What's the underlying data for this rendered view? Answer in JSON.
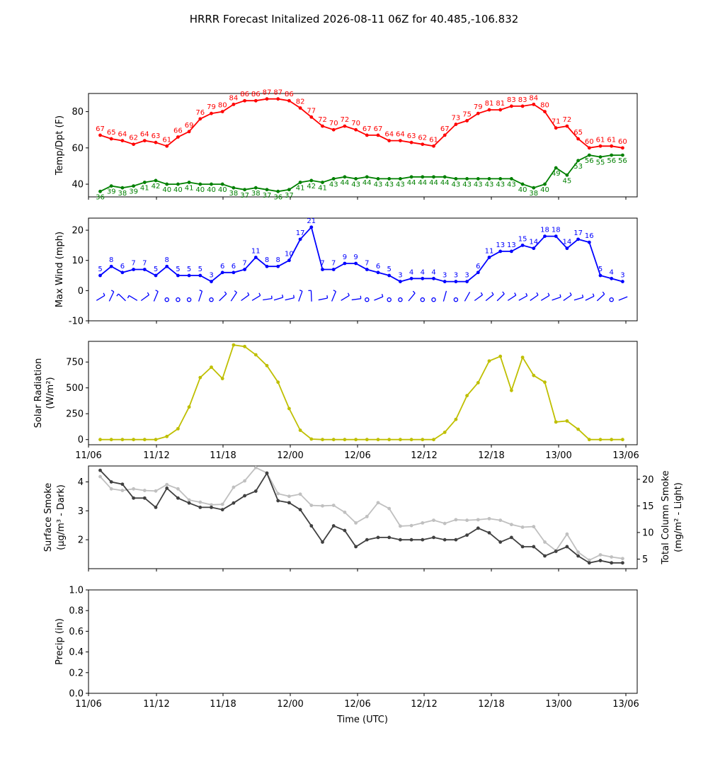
{
  "title": "HRRR Forecast Initalized 2026-08-11 06Z for 40.485,-106.832",
  "xlabel": "Time (UTC)",
  "colors": {
    "temp": "#ff0000",
    "dewpoint": "#008000",
    "wind": "#0000ff",
    "solar": "#bfbf00",
    "surface_smoke": "#404040",
    "column_smoke": "#c0c0c0"
  },
  "chart_data": [
    {
      "type": "line",
      "ylabel": "Temp/Dpt (F)",
      "ylim": [
        33,
        90
      ],
      "yticks": [
        40,
        60,
        80
      ],
      "series": [
        {
          "color": "red",
          "values": [
            67,
            65,
            64,
            62,
            64,
            63,
            61,
            66,
            69,
            76,
            79,
            80,
            84,
            86,
            86,
            87,
            87,
            86,
            82,
            77,
            72,
            70,
            72,
            70,
            67,
            67,
            64,
            64,
            63,
            62,
            61,
            67,
            73,
            75,
            79,
            81,
            81,
            83,
            83,
            84,
            80,
            71,
            72,
            65,
            60,
            61,
            61,
            60
          ]
        },
        {
          "color": "green",
          "values": [
            36,
            39,
            38,
            39,
            41,
            42,
            40,
            40,
            41,
            40,
            40,
            40,
            38,
            37,
            38,
            37,
            36,
            37,
            41,
            42,
            41,
            43,
            44,
            43,
            44,
            43,
            43,
            43,
            44,
            44,
            44,
            44,
            43,
            43,
            43,
            43,
            43,
            43,
            40,
            38,
            40,
            49,
            45,
            53,
            56,
            55,
            56,
            56
          ]
        }
      ]
    },
    {
      "type": "line",
      "ylabel": "Max Wind (mph)",
      "ylim": [
        -10,
        24
      ],
      "yticks": [
        -10,
        0,
        10,
        20
      ],
      "series": [
        {
          "color": "blue",
          "values": [
            5,
            8,
            6,
            7,
            7,
            5,
            8,
            5,
            5,
            5,
            3,
            6,
            6,
            7,
            11,
            8,
            8,
            10,
            17,
            21,
            7,
            7,
            9,
            9,
            7,
            6,
            5,
            3,
            4,
            4,
            4,
            3,
            3,
            3,
            6,
            11,
            13,
            13,
            15,
            14,
            18,
            18,
            14,
            17,
            16,
            5,
            4,
            3
          ]
        }
      ]
    },
    {
      "type": "line",
      "ylabel": "Solar Radiation (W/m²)",
      "ylim": [
        -50,
        950
      ],
      "yticks": [
        0,
        250,
        500,
        750
      ],
      "series": [
        {
          "color": "yellow",
          "values": [
            0,
            0,
            0,
            0,
            0,
            0,
            30,
            105,
            315,
            600,
            700,
            590,
            915,
            900,
            820,
            715,
            555,
            300,
            90,
            5,
            0,
            0,
            0,
            0,
            0,
            0,
            0,
            0,
            0,
            0,
            0,
            70,
            195,
            425,
            550,
            760,
            805,
            475,
            795,
            620,
            555,
            170,
            180,
            100,
            0,
            0,
            0,
            0
          ]
        }
      ]
    },
    {
      "type": "line",
      "ylabel": "Surface Smoke (μg/m³ - Dark)",
      "y2label": "Total Column Smoke (mg/m² - Light)",
      "ylim": [
        1.0,
        4.55
      ],
      "yticks": [
        2,
        3,
        4
      ],
      "y2lim": [
        3.2,
        22.5
      ],
      "y2ticks": [
        5,
        10,
        15,
        20
      ],
      "series": [
        {
          "name": "Surface Smoke",
          "axis": "left",
          "color": "dark",
          "values": [
            4.4,
            4.0,
            3.92,
            3.44,
            3.44,
            3.12,
            3.78,
            3.44,
            3.27,
            3.12,
            3.12,
            3.04,
            3.27,
            3.52,
            3.68,
            4.3,
            3.35,
            3.28,
            3.04,
            2.48,
            1.92,
            2.48,
            2.32,
            1.76,
            2.0,
            2.08,
            2.08,
            2.0,
            2.0,
            2.0,
            2.08,
            2.0,
            2.0,
            2.16,
            2.4,
            2.24,
            1.92,
            2.08,
            1.76,
            1.76,
            1.44,
            1.6,
            1.76,
            1.44,
            1.2,
            1.28,
            1.2,
            1.2
          ]
        },
        {
          "name": "Total Column Smoke",
          "axis": "right",
          "color": "light",
          "values": [
            20.5,
            18.2,
            17.9,
            18.2,
            17.9,
            17.8,
            19.0,
            18.2,
            16.1,
            15.7,
            15.2,
            15.3,
            18.5,
            19.7,
            22.2,
            21.2,
            17.3,
            16.8,
            17.2,
            15.1,
            15.0,
            15.1,
            13.8,
            11.8,
            13.0,
            15.6,
            14.5,
            11.2,
            11.3,
            11.8,
            12.3,
            11.7,
            12.4,
            12.3,
            12.4,
            12.6,
            12.3,
            11.5,
            11.0,
            11.1,
            8.2,
            6.6,
            9.7,
            6.3,
            4.8,
            5.8,
            5.4,
            5.1
          ]
        }
      ]
    },
    {
      "type": "line",
      "ylabel": "Precip (in)",
      "ylim": [
        0,
        1
      ],
      "yticks": [
        0.0,
        0.2,
        0.4,
        0.6,
        0.8,
        1.0
      ],
      "series": []
    }
  ],
  "xticks": [
    "11/06",
    "11/12",
    "11/18",
    "12/00",
    "12/06",
    "12/12",
    "12/18",
    "13/00",
    "13/06"
  ],
  "wind_barbs": [
    {
      "u": -6,
      "v": -3
    },
    {
      "u": -4,
      "v": -7
    },
    {
      "u": 5,
      "v": -4
    },
    {
      "u": 6,
      "v": -3
    },
    {
      "u": -5,
      "v": -3
    },
    {
      "u": -2,
      "v": -4
    },
    {
      "u": 0,
      "v": 0
    },
    {
      "u": 0,
      "v": 0
    },
    {
      "u": 0,
      "v": 0
    },
    {
      "u": -2,
      "v": -5
    },
    {
      "u": 0,
      "v": 0
    },
    {
      "u": -5,
      "v": -4
    },
    {
      "u": -4,
      "v": -5
    },
    {
      "u": -5,
      "v": -3
    },
    {
      "u": -10,
      "v": -5
    },
    {
      "u": -8,
      "v": -1
    },
    {
      "u": -8,
      "v": -2
    },
    {
      "u": -10,
      "v": -2
    },
    {
      "u": -6,
      "v": -14
    },
    {
      "u": 1,
      "v": -21
    },
    {
      "u": -6,
      "v": -1
    },
    {
      "u": -3,
      "v": -6
    },
    {
      "u": -8,
      "v": -4
    },
    {
      "u": -9,
      "v": -1
    },
    {
      "u": 0,
      "v": 0
    },
    {
      "u": -6,
      "v": -2
    },
    {
      "u": 0,
      "v": 0
    },
    {
      "u": 0,
      "v": 0
    },
    {
      "u": -3,
      "v": -3
    },
    {
      "u": 0,
      "v": 0
    },
    {
      "u": 0,
      "v": 0
    },
    {
      "u": -1,
      "v": -3
    },
    {
      "u": 0,
      "v": 0
    },
    {
      "u": -2,
      "v": -3
    },
    {
      "u": -5,
      "v": -3
    },
    {
      "u": -9,
      "v": -6
    },
    {
      "u": -10,
      "v": -8
    },
    {
      "u": -11,
      "v": -6
    },
    {
      "u": -13,
      "v": -6
    },
    {
      "u": -12,
      "v": -7
    },
    {
      "u": -16,
      "v": -8
    },
    {
      "u": -17,
      "v": -5
    },
    {
      "u": -12,
      "v": -7
    },
    {
      "u": -16,
      "v": -4
    },
    {
      "u": -15,
      "v": -6
    },
    {
      "u": -4,
      "v": -3
    },
    {
      "u": 0,
      "v": 0
    },
    {
      "u": -3,
      "v": -1
    }
  ]
}
